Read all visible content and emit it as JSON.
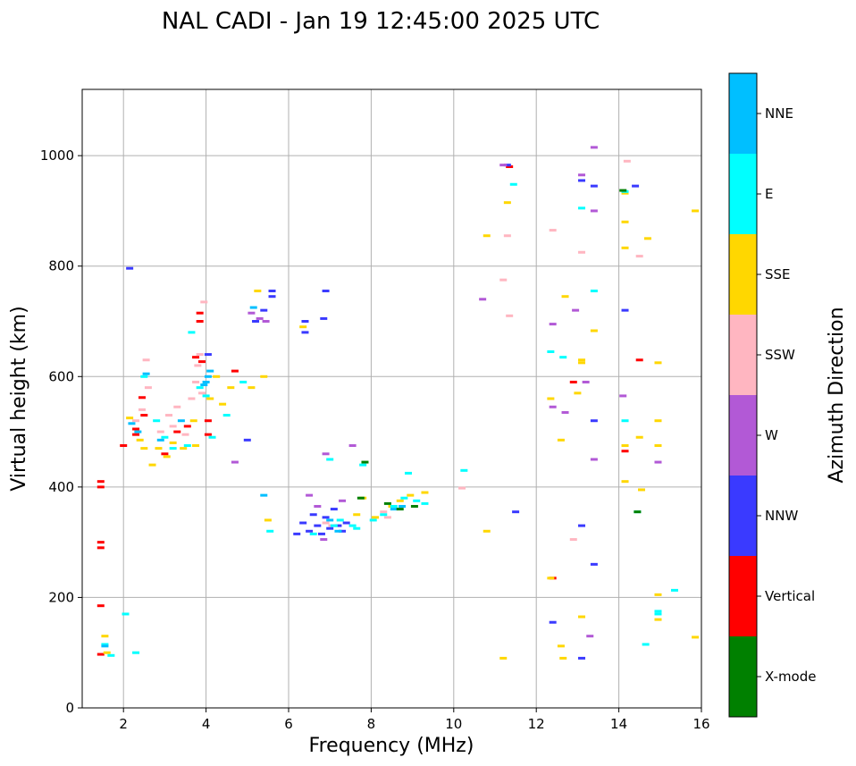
{
  "chart_data": {
    "type": "scatter",
    "title": "NAL CADI - Jan 19 12:45:00 2025 UTC",
    "xlabel": "Frequency (MHz)",
    "ylabel": "Virtual height (km)",
    "xlim": [
      1,
      16
    ],
    "ylim": [
      0,
      1120
    ],
    "xticks": [
      2,
      4,
      6,
      8,
      10,
      12,
      14,
      16
    ],
    "yticks": [
      0,
      200,
      400,
      600,
      800,
      1000
    ],
    "grid": true,
    "colorbar": {
      "label": "Azimuth Direction",
      "categories": [
        {
          "name": "X-mode",
          "color": "#008000"
        },
        {
          "name": "Vertical",
          "color": "#ff0000"
        },
        {
          "name": "NNW",
          "color": "#3a3aff"
        },
        {
          "name": "W",
          "color": "#b259d6"
        },
        {
          "name": "SSW",
          "color": "#ffb6c1"
        },
        {
          "name": "SSE",
          "color": "#ffd700"
        },
        {
          "name": "E",
          "color": "#00ffff"
        },
        {
          "name": "NNE",
          "color": "#00bfff"
        }
      ]
    },
    "series": [
      {
        "name": "Vertical",
        "points": [
          [
            1.45,
            410
          ],
          [
            1.45,
            400
          ],
          [
            1.45,
            300
          ],
          [
            1.45,
            290
          ],
          [
            1.45,
            185
          ],
          [
            1.45,
            97
          ],
          [
            2.0,
            475
          ],
          [
            2.3,
            505
          ],
          [
            2.3,
            495
          ],
          [
            2.45,
            562
          ],
          [
            2.5,
            530
          ],
          [
            3.0,
            460
          ],
          [
            3.3,
            500
          ],
          [
            3.55,
            510
          ],
          [
            3.75,
            635
          ],
          [
            3.85,
            715
          ],
          [
            3.85,
            700
          ],
          [
            3.9,
            627
          ],
          [
            4.05,
            495
          ],
          [
            4.05,
            520
          ],
          [
            4.7,
            610
          ],
          [
            11.35,
            980
          ],
          [
            12.4,
            235
          ],
          [
            12.9,
            590
          ],
          [
            14.15,
            465
          ],
          [
            14.5,
            630
          ]
        ]
      },
      {
        "name": "NNW",
        "points": [
          [
            2.15,
            796
          ],
          [
            4.05,
            640
          ],
          [
            5.0,
            485
          ],
          [
            5.2,
            700
          ],
          [
            5.4,
            720
          ],
          [
            5.6,
            755
          ],
          [
            5.6,
            745
          ],
          [
            6.2,
            315
          ],
          [
            6.35,
            335
          ],
          [
            6.5,
            320
          ],
          [
            6.6,
            350
          ],
          [
            6.7,
            330
          ],
          [
            6.8,
            315
          ],
          [
            6.9,
            345
          ],
          [
            7.0,
            325
          ],
          [
            7.1,
            360
          ],
          [
            7.2,
            330
          ],
          [
            7.3,
            320
          ],
          [
            7.4,
            335
          ],
          [
            6.4,
            700
          ],
          [
            6.4,
            680
          ],
          [
            6.9,
            755
          ],
          [
            6.85,
            705
          ],
          [
            11.3,
            983
          ],
          [
            11.5,
            355
          ],
          [
            12.4,
            155
          ],
          [
            13.1,
            955
          ],
          [
            13.1,
            330
          ],
          [
            13.1,
            90
          ],
          [
            13.4,
            945
          ],
          [
            13.4,
            520
          ],
          [
            13.4,
            260
          ],
          [
            14.15,
            720
          ],
          [
            14.4,
            945
          ]
        ]
      },
      {
        "name": "W",
        "points": [
          [
            4.7,
            445
          ],
          [
            5.1,
            715
          ],
          [
            5.3,
            705
          ],
          [
            5.45,
            700
          ],
          [
            6.5,
            385
          ],
          [
            6.7,
            365
          ],
          [
            6.85,
            305
          ],
          [
            6.9,
            460
          ],
          [
            7.3,
            375
          ],
          [
            7.55,
            475
          ],
          [
            10.7,
            740
          ],
          [
            11.2,
            983
          ],
          [
            12.4,
            695
          ],
          [
            12.4,
            545
          ],
          [
            12.7,
            535
          ],
          [
            12.95,
            720
          ],
          [
            13.1,
            965
          ],
          [
            13.2,
            590
          ],
          [
            13.4,
            1015
          ],
          [
            13.4,
            900
          ],
          [
            13.4,
            450
          ],
          [
            13.3,
            130
          ],
          [
            14.1,
            565
          ],
          [
            14.95,
            445
          ]
        ]
      },
      {
        "name": "SSW",
        "points": [
          [
            2.3,
            520
          ],
          [
            2.45,
            540
          ],
          [
            2.55,
            630
          ],
          [
            2.6,
            580
          ],
          [
            2.9,
            500
          ],
          [
            3.1,
            530
          ],
          [
            3.2,
            510
          ],
          [
            3.3,
            545
          ],
          [
            3.5,
            495
          ],
          [
            3.65,
            560
          ],
          [
            3.75,
            590
          ],
          [
            3.8,
            620
          ],
          [
            3.85,
            640
          ],
          [
            3.9,
            570
          ],
          [
            3.95,
            735
          ],
          [
            6.9,
            335
          ],
          [
            7.05,
            330
          ],
          [
            8.3,
            355
          ],
          [
            8.4,
            345
          ],
          [
            10.2,
            398
          ],
          [
            11.2,
            775
          ],
          [
            11.35,
            710
          ],
          [
            11.3,
            855
          ],
          [
            12.4,
            865
          ],
          [
            13.1,
            825
          ],
          [
            12.9,
            305
          ],
          [
            14.2,
            990
          ],
          [
            14.5,
            818
          ]
        ]
      },
      {
        "name": "SSE",
        "points": [
          [
            1.55,
            130
          ],
          [
            1.6,
            100
          ],
          [
            2.15,
            525
          ],
          [
            2.4,
            485
          ],
          [
            2.5,
            470
          ],
          [
            2.7,
            440
          ],
          [
            2.85,
            470
          ],
          [
            3.05,
            455
          ],
          [
            3.2,
            480
          ],
          [
            3.45,
            470
          ],
          [
            3.7,
            520
          ],
          [
            3.75,
            475
          ],
          [
            4.1,
            560
          ],
          [
            4.25,
            600
          ],
          [
            4.4,
            550
          ],
          [
            4.6,
            580
          ],
          [
            5.1,
            580
          ],
          [
            5.4,
            600
          ],
          [
            5.25,
            755
          ],
          [
            5.5,
            340
          ],
          [
            6.35,
            690
          ],
          [
            7.65,
            350
          ],
          [
            7.8,
            380
          ],
          [
            8.1,
            345
          ],
          [
            8.5,
            365
          ],
          [
            8.7,
            375
          ],
          [
            8.95,
            385
          ],
          [
            9.3,
            390
          ],
          [
            10.8,
            855
          ],
          [
            10.8,
            320
          ],
          [
            11.2,
            90
          ],
          [
            11.3,
            915
          ],
          [
            12.35,
            560
          ],
          [
            12.35,
            235
          ],
          [
            12.7,
            745
          ],
          [
            12.6,
            485
          ],
          [
            12.6,
            112
          ],
          [
            12.65,
            90
          ],
          [
            13.1,
            630
          ],
          [
            13.1,
            625
          ],
          [
            13.0,
            570
          ],
          [
            13.1,
            165
          ],
          [
            13.4,
            683
          ],
          [
            14.15,
            932
          ],
          [
            14.15,
            880
          ],
          [
            14.15,
            833
          ],
          [
            14.15,
            475
          ],
          [
            14.15,
            410
          ],
          [
            14.5,
            490
          ],
          [
            14.55,
            395
          ],
          [
            14.7,
            850
          ],
          [
            14.95,
            520
          ],
          [
            14.95,
            475
          ],
          [
            14.95,
            205
          ],
          [
            14.95,
            160
          ],
          [
            14.95,
            625
          ],
          [
            15.85,
            900
          ],
          [
            15.85,
            128
          ]
        ]
      },
      {
        "name": "E",
        "points": [
          [
            1.55,
            115
          ],
          [
            1.7,
            95
          ],
          [
            2.05,
            170
          ],
          [
            2.3,
            100
          ],
          [
            2.5,
            600
          ],
          [
            2.8,
            520
          ],
          [
            3.0,
            490
          ],
          [
            3.2,
            470
          ],
          [
            3.55,
            475
          ],
          [
            3.65,
            680
          ],
          [
            3.85,
            580
          ],
          [
            4.0,
            565
          ],
          [
            4.15,
            490
          ],
          [
            4.5,
            530
          ],
          [
            4.9,
            590
          ],
          [
            5.55,
            320
          ],
          [
            6.6,
            315
          ],
          [
            7.0,
            450
          ],
          [
            7.1,
            330
          ],
          [
            7.25,
            340
          ],
          [
            7.55,
            330
          ],
          [
            7.65,
            325
          ],
          [
            7.8,
            440
          ],
          [
            8.05,
            340
          ],
          [
            8.3,
            350
          ],
          [
            8.55,
            365
          ],
          [
            8.8,
            380
          ],
          [
            8.9,
            425
          ],
          [
            9.1,
            375
          ],
          [
            9.3,
            370
          ],
          [
            10.25,
            430
          ],
          [
            11.45,
            948
          ],
          [
            12.35,
            645
          ],
          [
            12.65,
            635
          ],
          [
            13.1,
            905
          ],
          [
            13.4,
            755
          ],
          [
            14.15,
            520
          ],
          [
            14.15,
            935
          ],
          [
            14.95,
            175
          ],
          [
            14.95,
            170
          ],
          [
            15.35,
            213
          ],
          [
            14.65,
            115
          ],
          [
            14.45,
            355
          ]
        ]
      },
      {
        "name": "NNE",
        "points": [
          [
            1.55,
            112
          ],
          [
            2.2,
            515
          ],
          [
            2.35,
            500
          ],
          [
            2.55,
            605
          ],
          [
            2.9,
            485
          ],
          [
            3.4,
            520
          ],
          [
            3.95,
            585
          ],
          [
            4.0,
            590
          ],
          [
            4.05,
            600
          ],
          [
            4.1,
            610
          ],
          [
            5.15,
            725
          ],
          [
            5.4,
            385
          ],
          [
            7.0,
            340
          ],
          [
            7.2,
            320
          ],
          [
            8.55,
            360
          ],
          [
            8.75,
            365
          ]
        ]
      },
      {
        "name": "X-mode",
        "points": [
          [
            7.75,
            380
          ],
          [
            7.85,
            445
          ],
          [
            8.4,
            370
          ],
          [
            8.7,
            360
          ],
          [
            9.05,
            365
          ],
          [
            14.45,
            355
          ],
          [
            14.1,
            937
          ]
        ]
      }
    ]
  }
}
